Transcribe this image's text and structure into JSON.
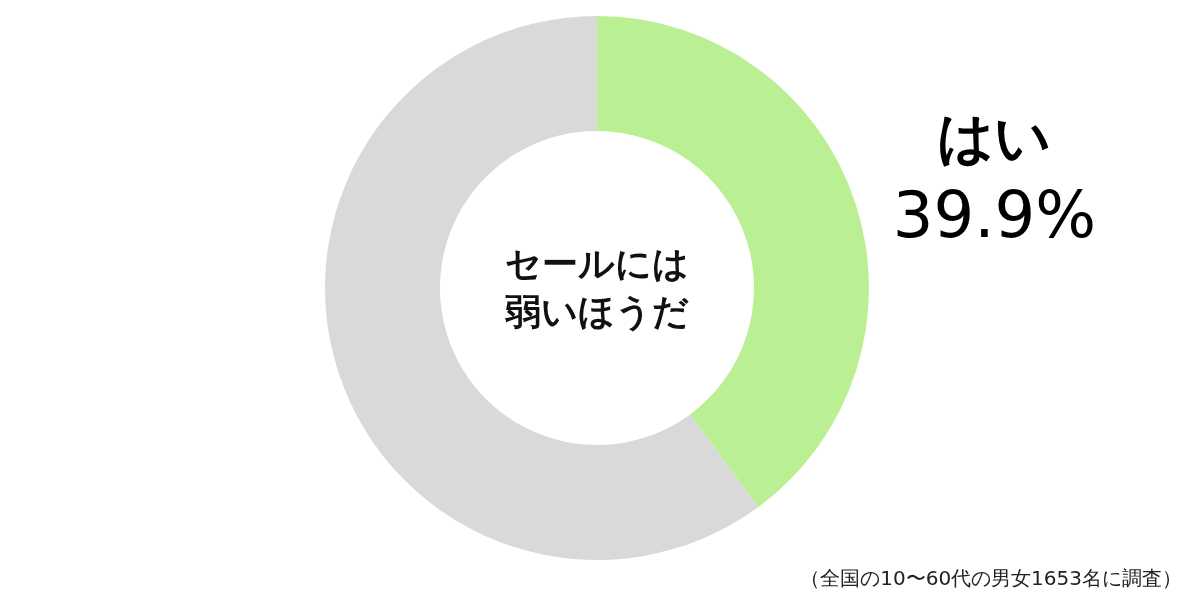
{
  "chart_data": {
    "type": "donut",
    "title": "セールには弱いほうだ",
    "categories": [
      "はい",
      null
    ],
    "values": [
      39.9,
      60.1
    ],
    "colors": [
      "#bbef93",
      "#d9d9d9"
    ],
    "value_labels": [
      "39.9%",
      null
    ],
    "annotations": [
      "（全国の10〜60代の男女1653名に調査）"
    ]
  }
}
